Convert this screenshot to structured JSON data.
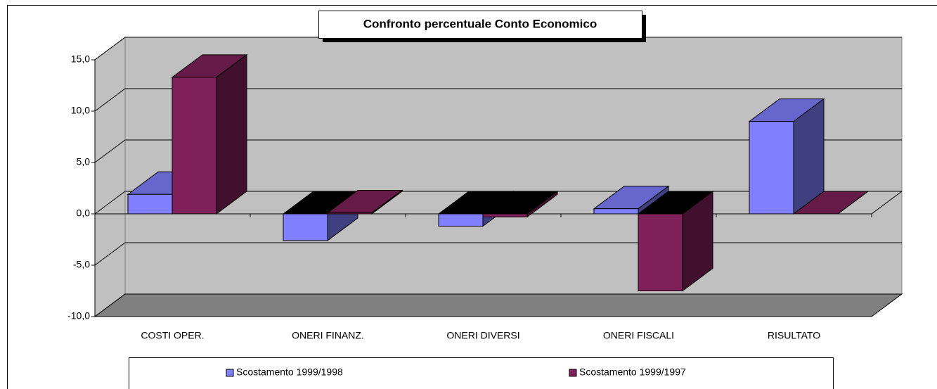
{
  "chart_data": {
    "type": "bar3d",
    "title": "Confronto percentuale Conto Economico",
    "categories": [
      "COSTI OPER.",
      "ONERI FINANZ.",
      "ONERI DIVERSI",
      "ONERI FISCALI",
      "RISULTATO"
    ],
    "series": [
      {
        "name": "Scostamento 1999/1998",
        "color": "#8080ff",
        "values": [
          1.9,
          -2.6,
          -1.2,
          0.5,
          9.0
        ]
      },
      {
        "name": "Scostamento 1999/1997",
        "color": "#80205a",
        "values": [
          13.3,
          0.1,
          -0.3,
          -7.5,
          0.0
        ]
      }
    ],
    "ylim": [
      -10,
      15
    ],
    "yticks": [
      {
        "value": -10,
        "label": "-10,0"
      },
      {
        "value": -5,
        "label": "-5,0"
      },
      {
        "value": 0,
        "label": "0,0"
      },
      {
        "value": 5,
        "label": "5,0"
      },
      {
        "value": 10,
        "label": "10,0"
      },
      {
        "value": 15,
        "label": "15,0"
      }
    ],
    "grid": true,
    "legend": "bottom"
  }
}
